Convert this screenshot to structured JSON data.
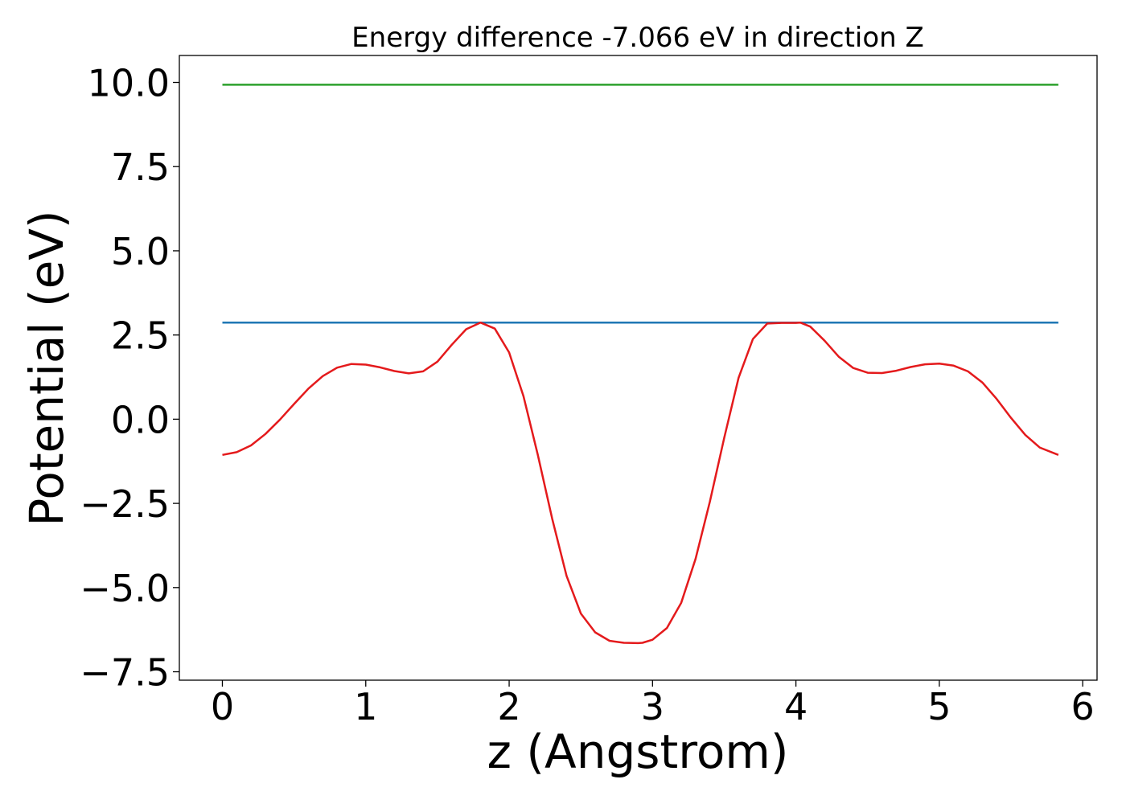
{
  "chart_data": {
    "type": "line",
    "title": "Energy difference -7.066 eV in direction Z",
    "xlabel": "z (Angstrom)",
    "ylabel": "Potential (eV)",
    "xlim": [
      -0.3,
      6.1
    ],
    "ylim": [
      -7.75,
      10.8
    ],
    "xticks": [
      0,
      1,
      2,
      3,
      4,
      5,
      6
    ],
    "xtick_labels": [
      "0",
      "1",
      "2",
      "3",
      "4",
      "5",
      "6"
    ],
    "yticks": [
      -7.5,
      -5.0,
      -2.5,
      0.0,
      2.5,
      5.0,
      7.5,
      10.0
    ],
    "ytick_labels": [
      "−7.5",
      "−5.0",
      "−2.5",
      "0.0",
      "2.5",
      "5.0",
      "7.5",
      "10.0"
    ],
    "grid": false,
    "series": [
      {
        "color": "#2ca02c",
        "x": [
          0,
          5.83
        ],
        "y": [
          9.93,
          9.93
        ]
      },
      {
        "color": "#1f77b4",
        "x": [
          0,
          5.83
        ],
        "y": [
          2.87,
          2.87
        ]
      },
      {
        "color": "#e41a1c",
        "x": [
          0,
          0.1,
          0.2,
          0.3,
          0.4,
          0.5,
          0.6,
          0.7,
          0.8,
          0.9,
          1.0,
          1.1,
          1.2,
          1.3,
          1.4,
          1.5,
          1.6,
          1.7,
          1.8,
          1.9,
          2.0,
          2.1,
          2.2,
          2.3,
          2.4,
          2.5,
          2.6,
          2.7,
          2.8,
          2.9,
          2.93,
          3.0,
          3.1,
          3.2,
          3.3,
          3.4,
          3.5,
          3.6,
          3.7,
          3.8,
          3.9,
          4.0,
          4.03,
          4.1,
          4.2,
          4.3,
          4.4,
          4.5,
          4.6,
          4.7,
          4.8,
          4.9,
          5.0,
          5.1,
          5.2,
          5.3,
          5.4,
          5.5,
          5.6,
          5.7,
          5.83
        ],
        "y": [
          -1.06,
          -0.98,
          -0.78,
          -0.44,
          -0.02,
          0.45,
          0.91,
          1.28,
          1.53,
          1.64,
          1.62,
          1.54,
          1.43,
          1.36,
          1.42,
          1.71,
          2.21,
          2.67,
          2.87,
          2.69,
          1.98,
          0.68,
          -1.06,
          -2.95,
          -4.65,
          -5.77,
          -6.33,
          -6.58,
          -6.64,
          -6.65,
          -6.64,
          -6.55,
          -6.2,
          -5.45,
          -4.15,
          -2.45,
          -0.55,
          1.23,
          2.38,
          2.84,
          2.86,
          2.86,
          2.87,
          2.75,
          2.33,
          1.85,
          1.52,
          1.38,
          1.37,
          1.44,
          1.55,
          1.63,
          1.65,
          1.59,
          1.42,
          1.09,
          0.6,
          0.04,
          -0.47,
          -0.84,
          -1.06
        ]
      }
    ]
  }
}
